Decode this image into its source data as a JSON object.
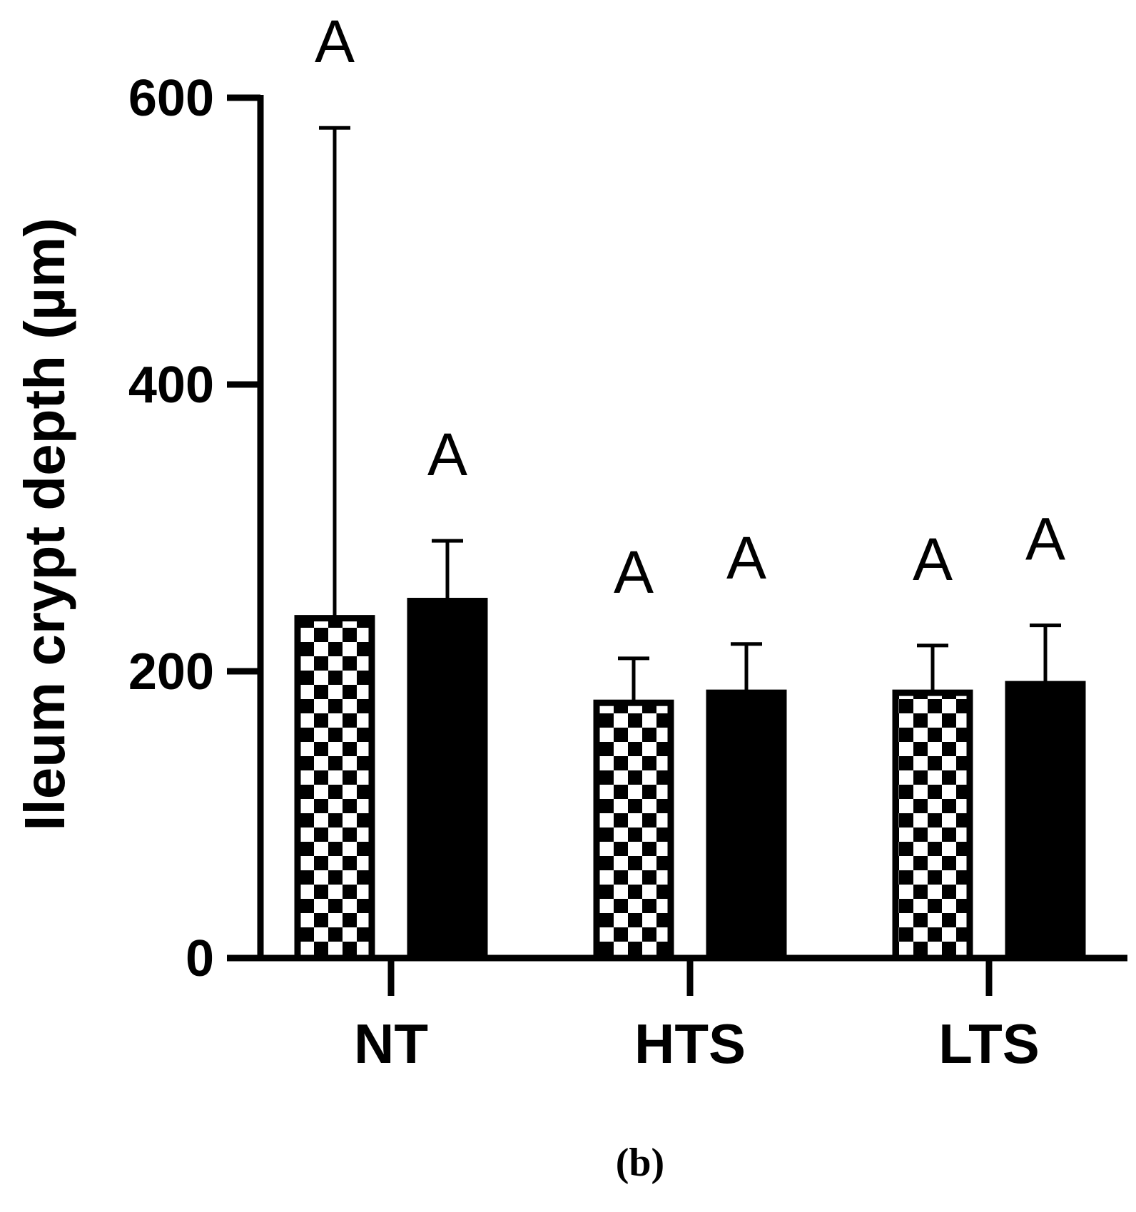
{
  "chart_data": {
    "type": "bar",
    "ylabel": "Ileum crypt depth (µm)",
    "xlabel": "",
    "ylim": [
      0,
      600
    ],
    "yticks": [
      0,
      200,
      400,
      600
    ],
    "categories": [
      "NT",
      "HTS",
      "LTS"
    ],
    "series": [
      {
        "pattern": "checkerboard",
        "values": [
          237,
          178,
          185
        ],
        "errors": [
          342,
          31,
          33
        ],
        "letters": [
          "A",
          "A",
          "A"
        ]
      },
      {
        "pattern": "solid",
        "values": [
          249,
          185,
          191
        ],
        "errors": [
          42,
          34,
          41
        ],
        "letters": [
          "A",
          "A",
          "A"
        ]
      }
    ],
    "colors": {
      "bar": "#000000",
      "check_light": "#ffffff"
    },
    "grid": false,
    "panel_label": "(b)"
  }
}
